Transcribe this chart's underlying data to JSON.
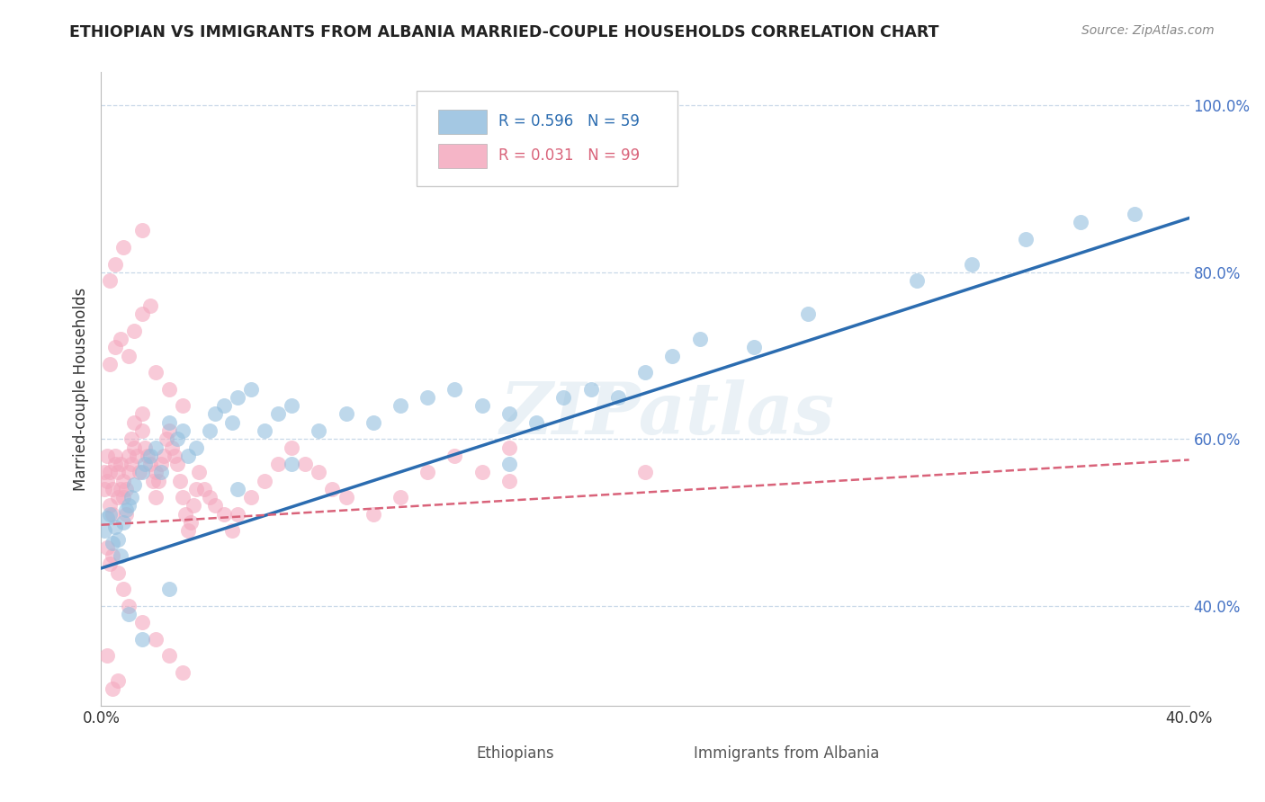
{
  "title": "ETHIOPIAN VS IMMIGRANTS FROM ALBANIA MARRIED-COUPLE HOUSEHOLDS CORRELATION CHART",
  "source": "Source: ZipAtlas.com",
  "ylabel": "Married-couple Households",
  "blue_color": "#94bfde",
  "pink_color": "#f4a8be",
  "blue_line_color": "#2b6cb0",
  "pink_line_color": "#d9637a",
  "watermark": "ZIPatlas",
  "xlim": [
    0.0,
    0.4
  ],
  "ylim": [
    0.28,
    1.04
  ],
  "blue_line_x0": 0.0,
  "blue_line_y0": 0.445,
  "blue_line_x1": 0.4,
  "blue_line_y1": 0.865,
  "pink_line_x0": 0.0,
  "pink_line_y0": 0.497,
  "pink_line_x1": 0.4,
  "pink_line_y1": 0.575,
  "blue_scatter_x": [
    0.001,
    0.002,
    0.003,
    0.004,
    0.005,
    0.006,
    0.007,
    0.008,
    0.009,
    0.01,
    0.011,
    0.012,
    0.015,
    0.016,
    0.018,
    0.02,
    0.022,
    0.025,
    0.028,
    0.03,
    0.032,
    0.035,
    0.04,
    0.042,
    0.045,
    0.048,
    0.05,
    0.055,
    0.06,
    0.065,
    0.07,
    0.08,
    0.09,
    0.1,
    0.11,
    0.12,
    0.13,
    0.14,
    0.15,
    0.16,
    0.17,
    0.18,
    0.19,
    0.2,
    0.21,
    0.22,
    0.24,
    0.26,
    0.3,
    0.32,
    0.34,
    0.36,
    0.38,
    0.01,
    0.015,
    0.025,
    0.05,
    0.07,
    0.15
  ],
  "blue_scatter_y": [
    0.49,
    0.505,
    0.51,
    0.475,
    0.495,
    0.48,
    0.46,
    0.5,
    0.515,
    0.52,
    0.53,
    0.545,
    0.56,
    0.57,
    0.58,
    0.59,
    0.56,
    0.62,
    0.6,
    0.61,
    0.58,
    0.59,
    0.61,
    0.63,
    0.64,
    0.62,
    0.65,
    0.66,
    0.61,
    0.63,
    0.64,
    0.61,
    0.63,
    0.62,
    0.64,
    0.65,
    0.66,
    0.64,
    0.63,
    0.62,
    0.65,
    0.66,
    0.65,
    0.68,
    0.7,
    0.72,
    0.71,
    0.75,
    0.79,
    0.81,
    0.84,
    0.86,
    0.87,
    0.39,
    0.36,
    0.42,
    0.54,
    0.57,
    0.57
  ],
  "pink_scatter_x": [
    0.001,
    0.001,
    0.002,
    0.002,
    0.003,
    0.003,
    0.004,
    0.004,
    0.005,
    0.005,
    0.006,
    0.006,
    0.007,
    0.007,
    0.008,
    0.008,
    0.009,
    0.009,
    0.01,
    0.01,
    0.011,
    0.011,
    0.012,
    0.012,
    0.013,
    0.014,
    0.015,
    0.015,
    0.016,
    0.017,
    0.018,
    0.019,
    0.02,
    0.02,
    0.021,
    0.022,
    0.023,
    0.024,
    0.025,
    0.026,
    0.027,
    0.028,
    0.029,
    0.03,
    0.031,
    0.032,
    0.033,
    0.034,
    0.035,
    0.036,
    0.038,
    0.04,
    0.042,
    0.045,
    0.048,
    0.05,
    0.055,
    0.06,
    0.065,
    0.07,
    0.075,
    0.08,
    0.085,
    0.09,
    0.1,
    0.11,
    0.12,
    0.13,
    0.14,
    0.15,
    0.003,
    0.005,
    0.007,
    0.01,
    0.012,
    0.015,
    0.018,
    0.02,
    0.025,
    0.03,
    0.002,
    0.003,
    0.004,
    0.006,
    0.008,
    0.01,
    0.015,
    0.02,
    0.025,
    0.03,
    0.003,
    0.005,
    0.008,
    0.015,
    0.15,
    0.2,
    0.002,
    0.004,
    0.006
  ],
  "pink_scatter_y": [
    0.54,
    0.56,
    0.55,
    0.58,
    0.56,
    0.52,
    0.51,
    0.54,
    0.57,
    0.58,
    0.53,
    0.56,
    0.54,
    0.57,
    0.55,
    0.53,
    0.51,
    0.54,
    0.56,
    0.58,
    0.57,
    0.6,
    0.59,
    0.62,
    0.58,
    0.56,
    0.61,
    0.63,
    0.59,
    0.58,
    0.57,
    0.55,
    0.53,
    0.56,
    0.55,
    0.57,
    0.58,
    0.6,
    0.61,
    0.59,
    0.58,
    0.57,
    0.55,
    0.53,
    0.51,
    0.49,
    0.5,
    0.52,
    0.54,
    0.56,
    0.54,
    0.53,
    0.52,
    0.51,
    0.49,
    0.51,
    0.53,
    0.55,
    0.57,
    0.59,
    0.57,
    0.56,
    0.54,
    0.53,
    0.51,
    0.53,
    0.56,
    0.58,
    0.56,
    0.55,
    0.69,
    0.71,
    0.72,
    0.7,
    0.73,
    0.75,
    0.76,
    0.68,
    0.66,
    0.64,
    0.47,
    0.45,
    0.46,
    0.44,
    0.42,
    0.4,
    0.38,
    0.36,
    0.34,
    0.32,
    0.79,
    0.81,
    0.83,
    0.85,
    0.59,
    0.56,
    0.34,
    0.3,
    0.31
  ]
}
